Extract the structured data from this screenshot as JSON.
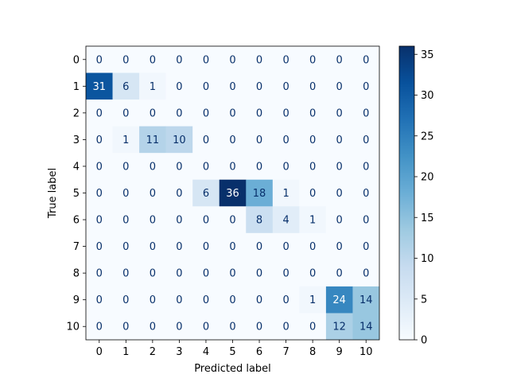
{
  "chart_data": {
    "type": "heatmap",
    "title": "",
    "xlabel": "Predicted label",
    "ylabel": "True label",
    "x_categories": [
      "0",
      "1",
      "2",
      "3",
      "4",
      "5",
      "6",
      "7",
      "8",
      "9",
      "10"
    ],
    "y_categories": [
      "0",
      "1",
      "2",
      "3",
      "4",
      "5",
      "6",
      "7",
      "8",
      "9",
      "10"
    ],
    "matrix": [
      [
        0,
        0,
        0,
        0,
        0,
        0,
        0,
        0,
        0,
        0,
        0
      ],
      [
        31,
        6,
        1,
        0,
        0,
        0,
        0,
        0,
        0,
        0,
        0
      ],
      [
        0,
        0,
        0,
        0,
        0,
        0,
        0,
        0,
        0,
        0,
        0
      ],
      [
        0,
        1,
        11,
        10,
        0,
        0,
        0,
        0,
        0,
        0,
        0
      ],
      [
        0,
        0,
        0,
        0,
        0,
        0,
        0,
        0,
        0,
        0,
        0
      ],
      [
        0,
        0,
        0,
        0,
        6,
        36,
        18,
        1,
        0,
        0,
        0
      ],
      [
        0,
        0,
        0,
        0,
        0,
        0,
        8,
        4,
        1,
        0,
        0
      ],
      [
        0,
        0,
        0,
        0,
        0,
        0,
        0,
        0,
        0,
        0,
        0
      ],
      [
        0,
        0,
        0,
        0,
        0,
        0,
        0,
        0,
        0,
        0,
        0
      ],
      [
        0,
        0,
        0,
        0,
        0,
        0,
        0,
        0,
        1,
        24,
        14
      ],
      [
        0,
        0,
        0,
        0,
        0,
        0,
        0,
        0,
        0,
        12,
        14
      ]
    ],
    "colormap": "Blues",
    "color_range": [
      0,
      36
    ],
    "colorbar_ticks": [
      0,
      5,
      10,
      15,
      20,
      25,
      30,
      35
    ],
    "grid": false
  }
}
